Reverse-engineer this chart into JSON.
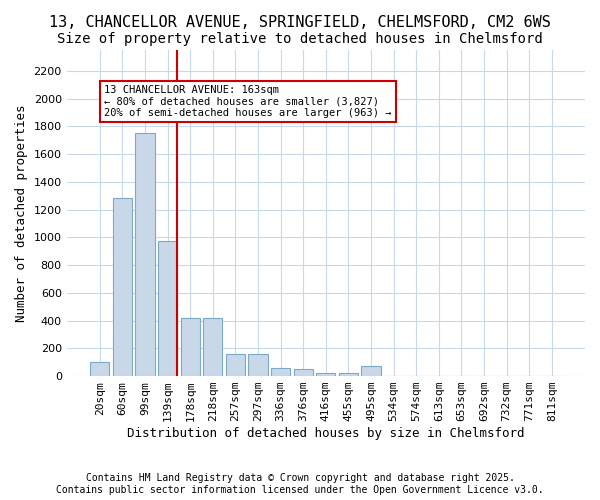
{
  "title_line1": "13, CHANCELLOR AVENUE, SPRINGFIELD, CHELMSFORD, CM2 6WS",
  "title_line2": "Size of property relative to detached houses in Chelmsford",
  "xlabel": "Distribution of detached houses by size in Chelmsford",
  "ylabel": "Number of detached properties",
  "bar_values": [
    100,
    1280,
    1750,
    970,
    420,
    420,
    160,
    160,
    60,
    50,
    20,
    20,
    70,
    0,
    0,
    0,
    0,
    0,
    0,
    0,
    0
  ],
  "categories": [
    "20sqm",
    "60sqm",
    "99sqm",
    "139sqm",
    "178sqm",
    "218sqm",
    "257sqm",
    "297sqm",
    "336sqm",
    "376sqm",
    "416sqm",
    "455sqm",
    "495sqm",
    "534sqm",
    "574sqm",
    "613sqm",
    "653sqm",
    "692sqm",
    "732sqm",
    "771sqm",
    "811sqm"
  ],
  "bar_color": "#c8d8e8",
  "bar_edge_color": "#7aaac8",
  "vline_color": "#cc0000",
  "vline_pos": 3.42,
  "annotation_box_text": "13 CHANCELLOR AVENUE: 163sqm\n← 80% of detached houses are smaller (3,827)\n20% of semi-detached houses are larger (963) →",
  "annotation_box_color": "#cc0000",
  "annotation_box_bg": "#ffffff",
  "ylim": [
    0,
    2350
  ],
  "yticks": [
    0,
    200,
    400,
    600,
    800,
    1000,
    1200,
    1400,
    1600,
    1800,
    2000,
    2200
  ],
  "footnote": "Contains HM Land Registry data © Crown copyright and database right 2025.\nContains public sector information licensed under the Open Government Licence v3.0.",
  "background_color": "#ffffff",
  "grid_color": "#c8d8e8",
  "title_fontsize": 11,
  "subtitle_fontsize": 10,
  "axis_fontsize": 9,
  "tick_fontsize": 8
}
